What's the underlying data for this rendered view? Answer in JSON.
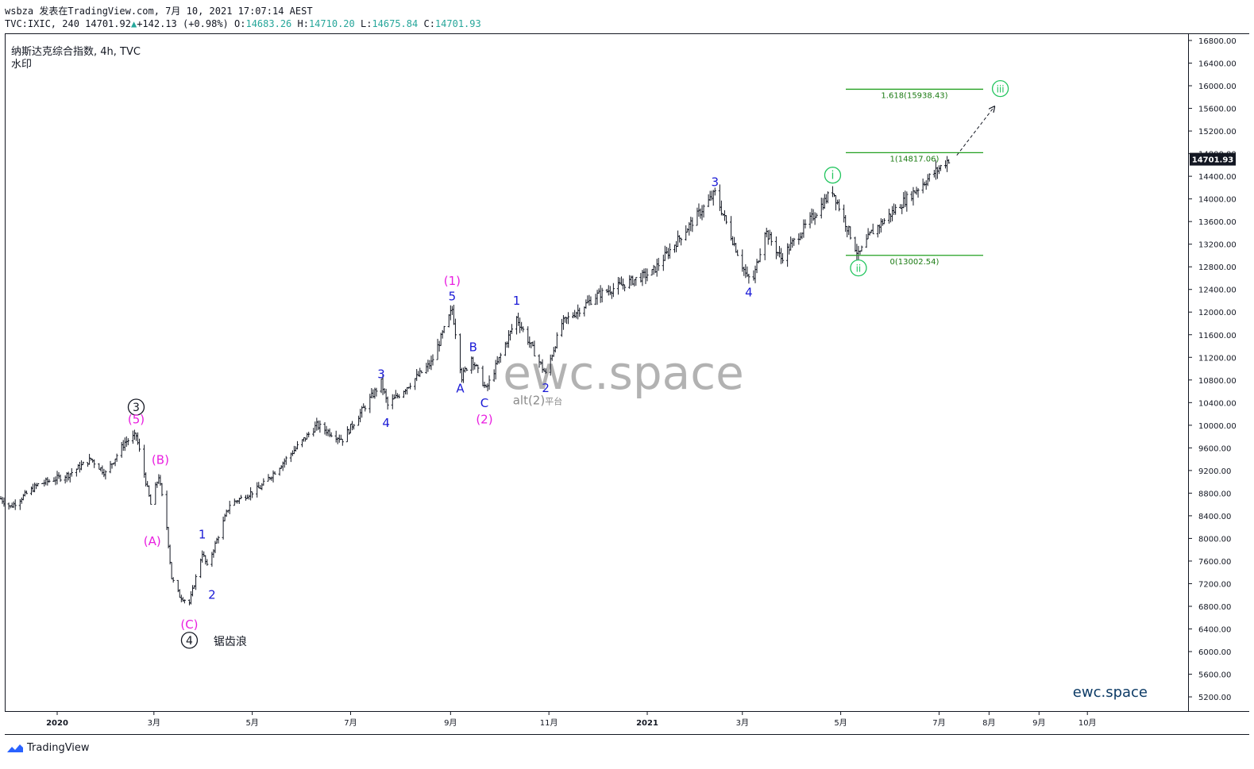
{
  "header": {
    "publisher_line": "wsbza 发表在TradingView.com, 7月 10, 2021 17:07:14 AEST",
    "symbol": "TVC:IXIC, 240",
    "last": "14701.92",
    "change": "+142.13 (+0.98%)",
    "open_label": "O:",
    "open": "14683.26",
    "high_label": "H:",
    "high": "14710.20",
    "low_label": "L:",
    "low": "14675.84",
    "close_label": "C:",
    "close": "14701.93"
  },
  "chart_title": "纳斯达克综合指数, 4h, TVC",
  "watermark_label": "水印",
  "watermark_text": "ewc.space",
  "brand_text": "ewc.space",
  "footer": {
    "brand": "TradingView"
  },
  "colors": {
    "bars": "#131722",
    "wave_blue": "#1a1ad6",
    "wave_magenta": "#e91ee0",
    "wave_green": "#22c55e",
    "fib_line": "#22a020",
    "fib_text": "#1a7a12",
    "watermark": "#b2b2b2",
    "brand": "#0d3b66"
  },
  "chart_data": {
    "type": "ohlc",
    "price_axis": {
      "ticks": [
        5200,
        5600,
        6000,
        6400,
        6800,
        7200,
        7600,
        8000,
        8400,
        8800,
        9200,
        9600,
        10000,
        10400,
        10800,
        11200,
        11600,
        12000,
        12400,
        12800,
        13200,
        13600,
        14000,
        14400,
        14800,
        15200,
        15600,
        16000,
        16400,
        16800
      ],
      "tick_labels": [
        "5200.00",
        "5600.00",
        "6000.00",
        "6400.00",
        "6800.00",
        "7200.00",
        "7600.00",
        "8000.00",
        "8400.00",
        "8800.00",
        "9200.00",
        "9600.00",
        "10000.00",
        "10400.00",
        "10800.00",
        "11200.00",
        "11600.00",
        "12000.00",
        "12400.00",
        "12800.00",
        "13200.00",
        "13600.00",
        "14000.00",
        "14400.00",
        "14800.00",
        "15200.00",
        "15600.00",
        "16000.00",
        "16400.00",
        "16800.00"
      ],
      "last_price": 14701.93,
      "last_price_label": "14701.93"
    },
    "time_axis": {
      "labels": [
        {
          "text": "2020",
          "date": "2020-01-01",
          "bold": true
        },
        {
          "text": "3月",
          "date": "2020-03-01"
        },
        {
          "text": "5月",
          "date": "2020-05-01"
        },
        {
          "text": "7月",
          "date": "2020-07-01"
        },
        {
          "text": "9月",
          "date": "2020-09-01"
        },
        {
          "text": "11月",
          "date": "2020-11-01"
        },
        {
          "text": "2021",
          "date": "2021-01-01",
          "bold": true
        },
        {
          "text": "3月",
          "date": "2021-03-01"
        },
        {
          "text": "5月",
          "date": "2021-05-01"
        },
        {
          "text": "7月",
          "date": "2021-07-01"
        },
        {
          "text": "8月",
          "date": "2021-08-01"
        },
        {
          "text": "9月",
          "date": "2021-09-01"
        },
        {
          "text": "10月",
          "date": "2021-10-01"
        }
      ]
    },
    "price_path": [
      [
        "2019-11-27",
        8700
      ],
      [
        "2019-12-03",
        8560
      ],
      [
        "2019-12-20",
        8950
      ],
      [
        "2020-01-08",
        9130
      ],
      [
        "2020-01-22",
        9400
      ],
      [
        "2020-01-31",
        9150
      ],
      [
        "2020-02-12",
        9700
      ],
      [
        "2020-02-19",
        9820
      ],
      [
        "2020-02-28",
        8600
      ],
      [
        "2020-03-04",
        9100
      ],
      [
        "2020-03-09",
        8200
      ],
      [
        "2020-03-12",
        7300
      ],
      [
        "2020-03-17",
        6980
      ],
      [
        "2020-03-23",
        6860
      ],
      [
        "2020-03-31",
        7750
      ],
      [
        "2020-04-03",
        7500
      ],
      [
        "2020-04-17",
        8600
      ],
      [
        "2020-05-06",
        8900
      ],
      [
        "2020-06-10",
        10000
      ],
      [
        "2020-06-26",
        9750
      ],
      [
        "2020-07-20",
        10760
      ],
      [
        "2020-07-24",
        10350
      ],
      [
        "2020-08-20",
        11100
      ],
      [
        "2020-09-02",
        12050
      ],
      [
        "2020-09-08",
        10850
      ],
      [
        "2020-09-14",
        11200
      ],
      [
        "2020-09-23",
        10630
      ],
      [
        "2020-10-12",
        11900
      ],
      [
        "2020-10-30",
        10900
      ],
      [
        "2020-11-09",
        11800
      ],
      [
        "2020-12-01",
        12300
      ],
      [
        "2021-01-04",
        12700
      ],
      [
        "2021-02-12",
        14100
      ],
      [
        "2021-03-04",
        12600
      ],
      [
        "2021-03-08",
        12600
      ],
      [
        "2021-03-15",
        13450
      ],
      [
        "2021-03-25",
        12950
      ],
      [
        "2021-04-26",
        14150
      ],
      [
        "2021-05-12",
        13000
      ],
      [
        "2021-05-20",
        13400
      ],
      [
        "2021-06-07",
        13900
      ],
      [
        "2021-07-07",
        14701.93
      ]
    ],
    "fib_levels": [
      {
        "label": "1.618(15938.43)",
        "value": 15938.43,
        "ratio": 1.618
      },
      {
        "label": "1(14817.06)",
        "value": 14817.06,
        "ratio": 1
      },
      {
        "label": "0(13002.54)",
        "value": 13002.54,
        "ratio": 0
      }
    ],
    "projection": {
      "from": [
        "2021-07-12",
        14770
      ],
      "to": [
        "2021-08-04",
        15620
      ]
    },
    "wave_labels": [
      {
        "text": "3",
        "date": "2020-02-19",
        "price": 10320,
        "style": "circle-black"
      },
      {
        "text": "(5)",
        "date": "2020-02-19",
        "price": 10100,
        "style": "magenta"
      },
      {
        "text": "(B)",
        "date": "2020-03-05",
        "price": 9390,
        "style": "magenta"
      },
      {
        "text": "(A)",
        "date": "2020-02-29",
        "price": 7950,
        "style": "magenta"
      },
      {
        "text": "(C)",
        "date": "2020-03-23",
        "price": 6480,
        "style": "magenta"
      },
      {
        "text": "4",
        "date": "2020-03-23",
        "price": 6200,
        "style": "circle-black"
      },
      {
        "text": "锯齿浪",
        "date": "2020-04-07",
        "price": 6180,
        "style": "black-text"
      },
      {
        "text": "1",
        "date": "2020-03-31",
        "price": 8070,
        "style": "blue"
      },
      {
        "text": "2",
        "date": "2020-04-06",
        "price": 7000,
        "style": "blue"
      },
      {
        "text": "3",
        "date": "2020-07-20",
        "price": 10900,
        "style": "blue"
      },
      {
        "text": "4",
        "date": "2020-07-23",
        "price": 10040,
        "style": "blue"
      },
      {
        "text": "(1)",
        "date": "2020-09-02",
        "price": 12550,
        "style": "magenta"
      },
      {
        "text": "5",
        "date": "2020-09-02",
        "price": 12280,
        "style": "blue"
      },
      {
        "text": "B",
        "date": "2020-09-15",
        "price": 11380,
        "style": "blue"
      },
      {
        "text": "A",
        "date": "2020-09-07",
        "price": 10650,
        "style": "blue"
      },
      {
        "text": "C",
        "date": "2020-09-22",
        "price": 10390,
        "style": "blue"
      },
      {
        "text": "(2)",
        "date": "2020-09-22",
        "price": 10100,
        "style": "magenta"
      },
      {
        "text": "1",
        "date": "2020-10-12",
        "price": 12200,
        "style": "blue"
      },
      {
        "text": "2",
        "date": "2020-10-30",
        "price": 10660,
        "style": "blue"
      },
      {
        "text": "3",
        "date": "2021-02-12",
        "price": 14300,
        "style": "blue"
      },
      {
        "text": "4",
        "date": "2021-03-05",
        "price": 12350,
        "style": "blue"
      },
      {
        "text": "i",
        "date": "2021-04-26",
        "price": 14420,
        "style": "circle-green"
      },
      {
        "text": "ii",
        "date": "2021-05-12",
        "price": 12780,
        "style": "circle-green"
      },
      {
        "text": "iii",
        "date": "2021-08-08",
        "price": 15950,
        "style": "circle-green"
      }
    ],
    "annotation": {
      "main": "alt(2)",
      "suffix": "平台",
      "date": "2020-10-25",
      "price": 10370
    }
  }
}
